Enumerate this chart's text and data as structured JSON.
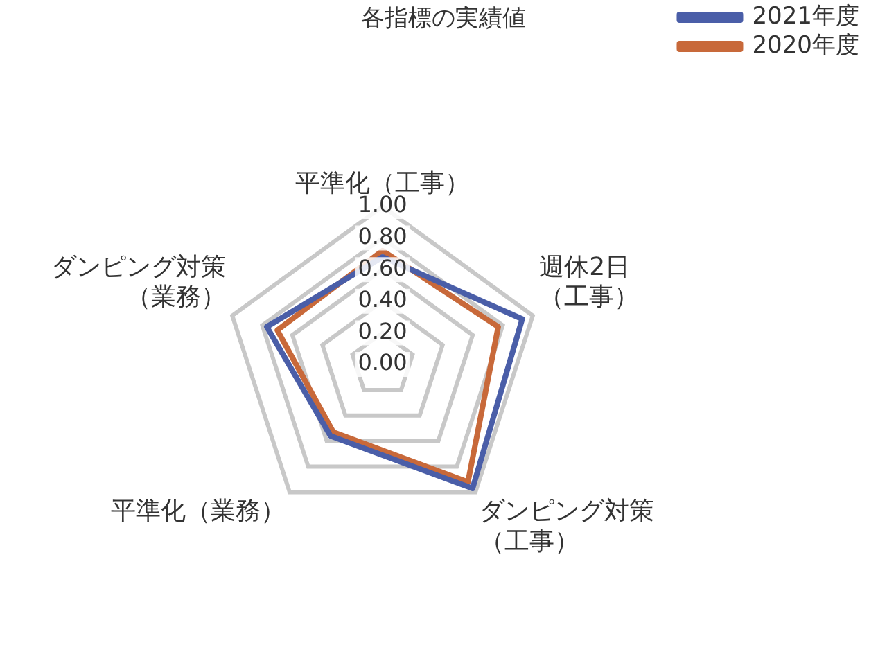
{
  "chart_data": {
    "type": "radar",
    "title": "各指標の実績値",
    "categories": [
      "平準化（工事）",
      "週休2日（工事）",
      "ダンピング対策（工事）",
      "平準化（業務）",
      "ダンピング対策（業務）"
    ],
    "series": [
      {
        "name": "2021年度",
        "color": "#4a5ea8",
        "values": [
          0.68,
          0.93,
          0.97,
          0.56,
          0.77
        ]
      },
      {
        "name": "2020年度",
        "color": "#c8693a",
        "values": [
          0.72,
          0.77,
          0.92,
          0.53,
          0.7
        ]
      }
    ],
    "ylim": [
      0,
      1
    ],
    "yticks": [
      {
        "value": 0,
        "label": "0.00"
      },
      {
        "value": 0.2,
        "label": "0.20"
      },
      {
        "value": 0.4,
        "label": "0.40"
      },
      {
        "value": 0.6,
        "label": "0.60"
      },
      {
        "value": 0.8,
        "label": "0.80"
      },
      {
        "value": 1,
        "label": "1.00"
      }
    ],
    "grid": true,
    "legend": "right top",
    "marker": "none"
  }
}
